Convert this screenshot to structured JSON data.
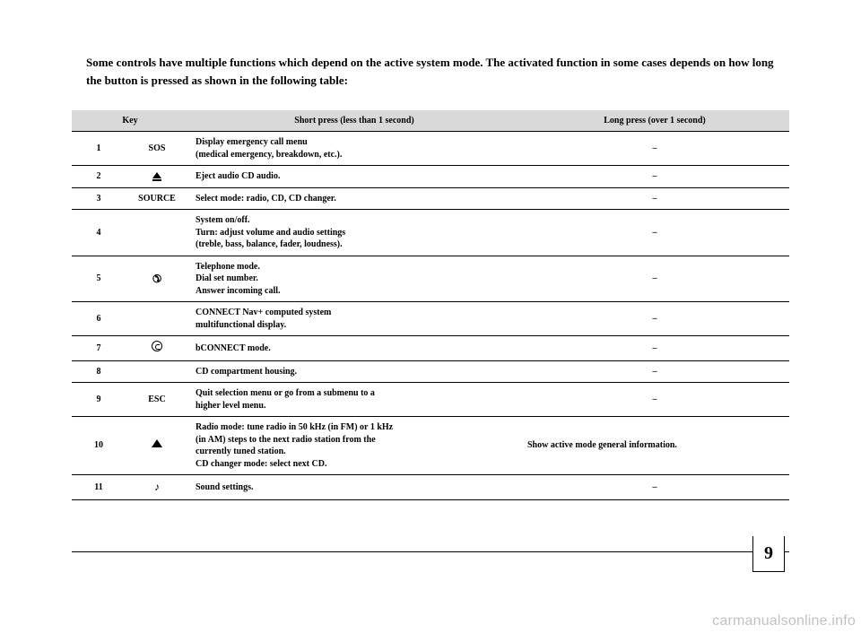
{
  "intro": "Some controls have multiple functions which depend on the active system mode. The activated function in some cases depends on how long the button is pressed as shown in the following table:",
  "headers": {
    "key": "Key",
    "short": "Short press (less than 1 second)",
    "long": "Long press (over 1 second)"
  },
  "rows": [
    {
      "num": "1",
      "symText": "SOS",
      "symIcon": "",
      "short": "Display emergency call menu\n(medical emergency, breakdown, etc.).",
      "long": "–",
      "longCentered": true
    },
    {
      "num": "2",
      "symText": "",
      "symIcon": "eject",
      "short": "Eject audio CD audio.",
      "long": "–",
      "longCentered": true
    },
    {
      "num": "3",
      "symText": "SOURCE",
      "symIcon": "",
      "short": "Select mode: radio, CD, CD changer.",
      "long": "–",
      "longCentered": true
    },
    {
      "num": "4",
      "symText": "",
      "symIcon": "",
      "short": "System on/off.\nTurn: adjust volume and audio settings\n(treble, bass, balance, fader, loudness).",
      "long": "–",
      "longCentered": true
    },
    {
      "num": "5",
      "symText": "",
      "symIcon": "phone",
      "short": "Telephone mode.\nDial set number.\nAnswer incoming call.",
      "long": "–",
      "longCentered": true
    },
    {
      "num": "6",
      "symText": "",
      "symIcon": "",
      "short": "CONNECT Nav+ computed system\nmultifunctional display.",
      "long": "–",
      "longCentered": true
    },
    {
      "num": "7",
      "symText": "",
      "symIcon": "cc",
      "short": "bCONNECT mode.",
      "long": "–",
      "longCentered": true
    },
    {
      "num": "8",
      "symText": "",
      "symIcon": "",
      "short": "CD compartment housing.",
      "long": "–",
      "longCentered": true
    },
    {
      "num": "9",
      "symText": "ESC",
      "symIcon": "",
      "short": "Quit selection menu or go from a submenu to a\nhigher level menu.",
      "long": "–",
      "longCentered": true
    },
    {
      "num": "10",
      "symText": "",
      "symIcon": "up",
      "short": "Radio mode: tune radio in 50 kHz (in FM) or 1 kHz\n(in AM) steps to the next radio station from the\ncurrently tuned station.\nCD changer mode: select next CD.",
      "long": "Show active mode general information.",
      "longCentered": false
    },
    {
      "num": "11",
      "symText": "",
      "symIcon": "note",
      "short": "Sound settings.",
      "long": "–",
      "longCentered": true
    }
  ],
  "pageNumber": "9",
  "watermark": "carmanualsonline.info",
  "colors": {
    "headerBg": "#d9d9d9",
    "text": "#000000",
    "bg": "#ffffff",
    "watermark": "#c2c2c2"
  },
  "fontSizes": {
    "intro": 13,
    "table": 10,
    "pageNum": 20,
    "watermark": 16
  }
}
